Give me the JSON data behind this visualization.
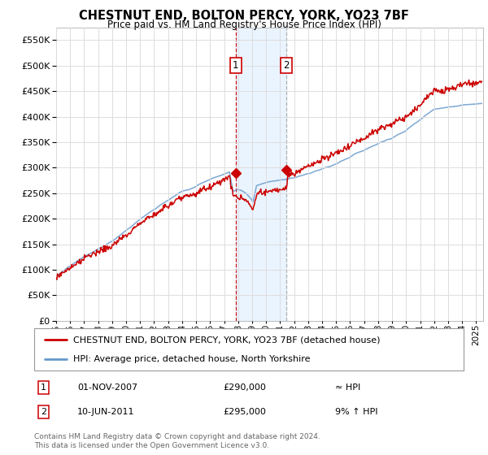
{
  "title": "CHESTNUT END, BOLTON PERCY, YORK, YO23 7BF",
  "subtitle": "Price paid vs. HM Land Registry's House Price Index (HPI)",
  "ylabel_values": [
    0,
    50000,
    100000,
    150000,
    200000,
    250000,
    300000,
    350000,
    400000,
    450000,
    500000,
    550000
  ],
  "ylim": [
    0,
    575000
  ],
  "xlim_start": 1995.0,
  "xlim_end": 2025.5,
  "sale1_date": 2007.83,
  "sale1_price": 290000,
  "sale2_date": 2011.44,
  "sale2_price": 295000,
  "sale1_label": "01-NOV-2007",
  "sale2_label": "10-JUN-2011",
  "sale1_vs_hpi": "≈ HPI",
  "sale2_vs_hpi": "9% ↑ HPI",
  "legend_line1": "CHESTNUT END, BOLTON PERCY, YORK, YO23 7BF (detached house)",
  "legend_line2": "HPI: Average price, detached house, North Yorkshire",
  "footer": "Contains HM Land Registry data © Crown copyright and database right 2024.\nThis data is licensed under the Open Government Licence v3.0.",
  "line_color_red": "#cc0000",
  "line_color_blue": "#6699cc",
  "background_color": "#ffffff",
  "grid_color": "#dddddd",
  "shade_color": "#ddeeff"
}
